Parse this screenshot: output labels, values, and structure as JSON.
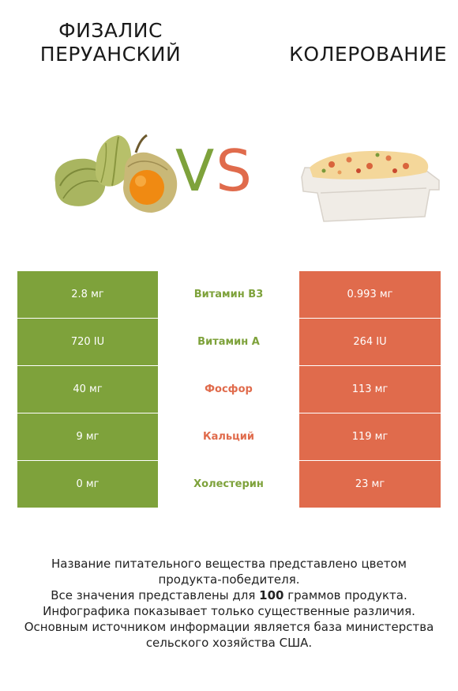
{
  "header": {
    "left_title": "Физалис перуанский",
    "right_title": "Колерование",
    "vs_v": "V",
    "vs_s": "S"
  },
  "colors": {
    "left_accent": "#7ea23b",
    "right_accent": "#e06b4c"
  },
  "rows": [
    {
      "left": "2.8 мг",
      "name": "Витамин B3",
      "right": "0.993 мг",
      "winner": "left"
    },
    {
      "left": "720 IU",
      "name": "Витамин A",
      "right": "264 IU",
      "winner": "left"
    },
    {
      "left": "40 мг",
      "name": "Фосфор",
      "right": "113 мг",
      "winner": "right"
    },
    {
      "left": "9 мг",
      "name": "Кальций",
      "right": "119 мг",
      "winner": "right"
    },
    {
      "left": "0 мг",
      "name": "Холестерин",
      "right": "23 мг",
      "winner": "left"
    }
  ],
  "footer": {
    "line1": "Название питательного вещества представлено цветом",
    "line2": "продукта-победителя.",
    "line3a": "Все значения представлены для ",
    "line3b": "100",
    "line3c": " граммов продукта.",
    "line4": "Инфографика показывает только существенные различия.",
    "line5": "Основным источником информации является база министерства",
    "line6": "сельского хозяйства США."
  }
}
